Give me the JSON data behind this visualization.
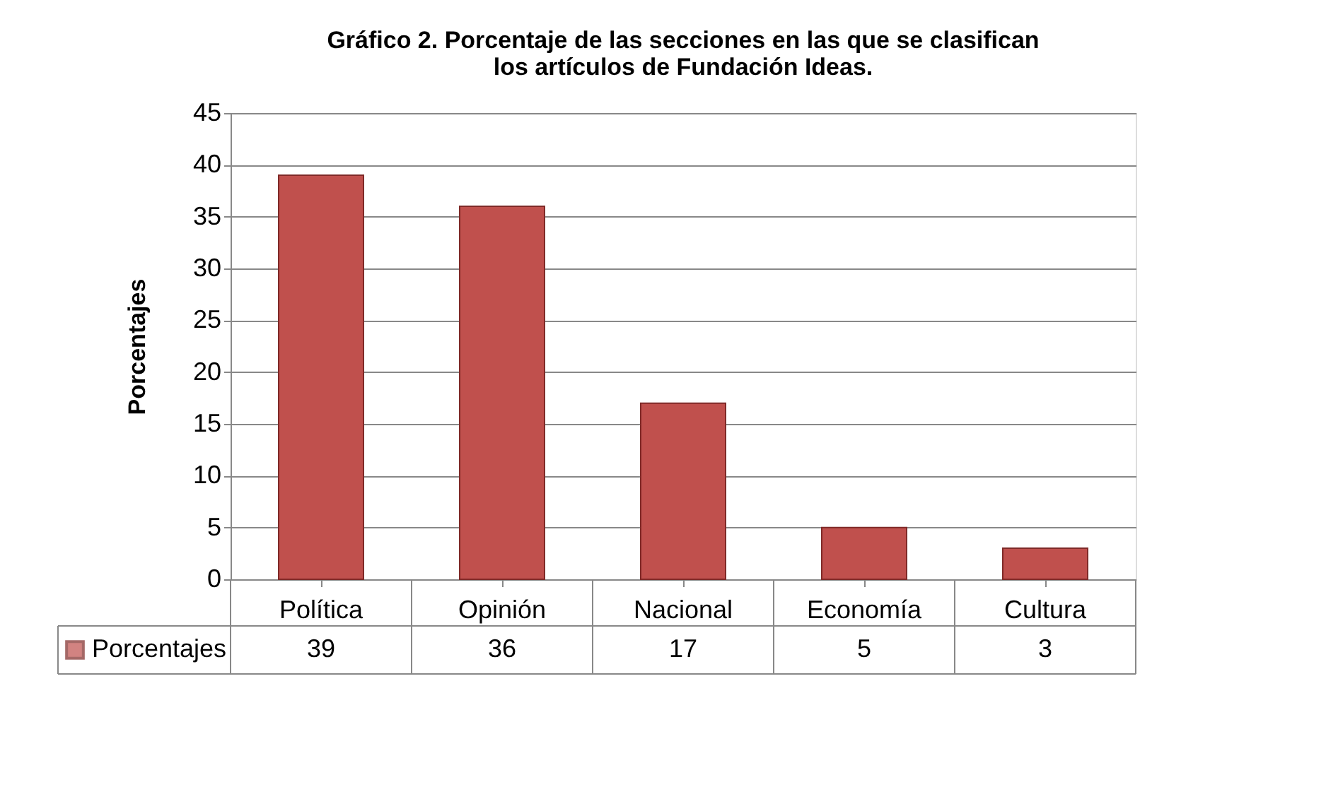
{
  "chart_data": {
    "type": "bar",
    "title": [
      "Gráfico 2. Porcentaje de las secciones en las que se clasifican",
      "los artículos de Fundación Ideas."
    ],
    "ylabel": "Porcentajes",
    "categories": [
      "Política",
      "Opinión",
      "Nacional",
      "Economía",
      "Cultura"
    ],
    "series": [
      {
        "name": "Porcentajes",
        "color": "#c0504d",
        "values": [
          39,
          36,
          17,
          5,
          3
        ]
      }
    ],
    "ylim": [
      0,
      45
    ],
    "yticks": [
      0,
      5,
      10,
      15,
      20,
      25,
      30,
      35,
      40,
      45
    ],
    "grid": "y",
    "legend": "bottom",
    "data_labels": true
  }
}
